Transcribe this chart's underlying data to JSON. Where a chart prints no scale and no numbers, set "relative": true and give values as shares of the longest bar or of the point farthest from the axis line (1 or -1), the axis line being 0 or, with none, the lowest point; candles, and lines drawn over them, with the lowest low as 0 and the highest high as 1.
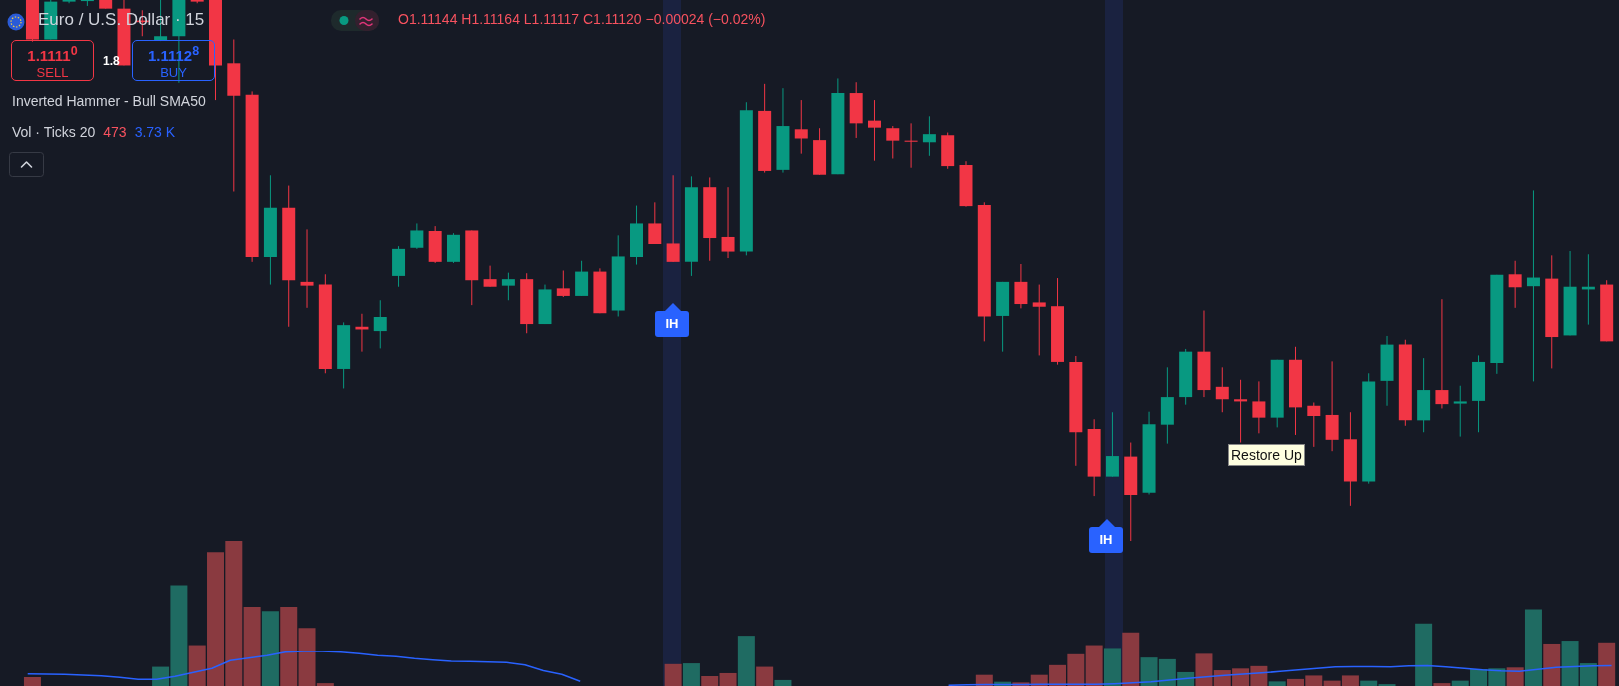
{
  "chart_data": [
    {
      "type": "candlestick",
      "title": "Euro / U.S. Dollar · 15",
      "subtitle": "O1.11144 H1.11164 L1.11117 C1.11120 −0.00024 (−0.02%)",
      "relative": true,
      "categories": [
        null,
        null,
        null,
        null,
        null,
        null,
        null,
        null,
        null,
        null,
        null,
        null,
        null,
        null,
        null,
        null,
        null,
        null,
        null,
        null,
        null,
        null,
        null,
        null,
        null,
        null,
        null,
        null,
        null,
        null,
        null,
        null,
        null,
        null,
        null,
        null,
        null,
        null,
        null,
        null,
        null,
        null,
        null,
        null,
        null,
        null,
        null,
        null,
        null,
        null,
        null,
        null,
        null,
        null,
        null,
        null,
        null,
        null,
        null,
        null,
        null,
        null,
        null,
        null,
        null,
        null,
        null,
        null,
        null,
        null,
        null,
        null,
        null,
        null,
        null,
        null,
        null,
        null,
        null,
        null,
        null,
        null,
        null,
        null,
        null,
        null,
        null
      ],
      "ohlc": [
        [
          1,
          1,
          0.923,
          0.927
        ],
        [
          0.927,
          1,
          0.927,
          0.997
        ],
        [
          0.997,
          1,
          0.994,
          1
        ],
        [
          0.998,
          1,
          0.989,
          1
        ],
        [
          1,
          1,
          0.984,
          0.984
        ],
        [
          0.984,
          1,
          0.879,
          0.879
        ],
        [
          0.962,
          0.981,
          0.933,
          0.959
        ],
        [
          0.925,
          1,
          0.924,
          0.933
        ],
        [
          0.933,
          1,
          0.847,
          1
        ],
        [
          1,
          1,
          0.994,
          0.997
        ],
        [
          1,
          1,
          0.815,
          0.879
        ],
        [
          0.883,
          0.927,
          0.646,
          0.823
        ],
        [
          0.825,
          0.831,
          0.516,
          0.525
        ],
        [
          0.525,
          0.676,
          0.474,
          0.616
        ],
        [
          0.616,
          0.657,
          0.396,
          0.482
        ],
        [
          0.479,
          0.576,
          0.431,
          0.472
        ],
        [
          0.474,
          0.493,
          0.31,
          0.318
        ],
        [
          0.318,
          0.404,
          0.282,
          0.399
        ],
        [
          0.396,
          0.42,
          0.35,
          0.391
        ],
        [
          0.388,
          0.445,
          0.356,
          0.414
        ],
        [
          0.49,
          0.545,
          0.47,
          0.54
        ],
        [
          0.542,
          0.587,
          0.54,
          0.574
        ],
        [
          0.573,
          0.582,
          0.514,
          0.516
        ],
        [
          0.516,
          0.569,
          0.514,
          0.566
        ],
        [
          0.574,
          0.574,
          0.436,
          0.482
        ],
        [
          0.484,
          0.509,
          0.47,
          0.47
        ],
        [
          0.472,
          0.496,
          0.445,
          0.484
        ],
        [
          0.484,
          0.495,
          0.384,
          0.401
        ],
        [
          0.401,
          0.474,
          0.401,
          0.465
        ],
        [
          0.467,
          0.5,
          0.451,
          0.453
        ],
        [
          0.453,
          0.518,
          0.453,
          0.498
        ],
        [
          0.498,
          0.504,
          0.421,
          0.421
        ],
        [
          0.426,
          0.565,
          0.415,
          0.526
        ],
        [
          0.525,
          0.62,
          0.511,
          0.587
        ],
        [
          0.587,
          0.626,
          0.549,
          0.549
        ],
        [
          0.55,
          0.676,
          0.516,
          0.516
        ],
        [
          0.516,
          0.674,
          0.49,
          0.654
        ],
        [
          0.654,
          0.672,
          0.518,
          0.56
        ],
        [
          0.562,
          0.654,
          0.523,
          0.535
        ],
        [
          0.535,
          0.811,
          0.528,
          0.796
        ],
        [
          0.795,
          0.845,
          0.681,
          0.684
        ],
        [
          0.686,
          0.837,
          0.681,
          0.767
        ],
        [
          0.761,
          0.815,
          0.716,
          0.744
        ],
        [
          0.741,
          0.763,
          0.677,
          0.677
        ],
        [
          0.678,
          0.855,
          0.678,
          0.828
        ],
        [
          0.828,
          0.848,
          0.745,
          0.772
        ],
        [
          0.777,
          0.815,
          0.703,
          0.764
        ],
        [
          0.763,
          0.767,
          0.707,
          0.74
        ],
        [
          0.74,
          0.772,
          0.69,
          0.738
        ],
        [
          0.737,
          0.785,
          0.712,
          0.752
        ],
        [
          0.75,
          0.755,
          0.688,
          0.693
        ],
        [
          0.695,
          0.702,
          0.618,
          0.619
        ],
        [
          0.621,
          0.626,
          0.369,
          0.415
        ],
        [
          0.416,
          0.479,
          0.35,
          0.479
        ],
        [
          0.479,
          0.512,
          0.43,
          0.438
        ],
        [
          0.441,
          0.474,
          0.343,
          0.433
        ],
        [
          0.434,
          0.486,
          0.326,
          0.331
        ],
        [
          0.331,
          0.342,
          0.139,
          0.201
        ],
        [
          0.207,
          0.225,
          0.083,
          0.119
        ],
        [
          0.119,
          0.238,
          0.119,
          0.157
        ],
        [
          0.156,
          0.182,
          0,
          0.085
        ],
        [
          0.089,
          0.239,
          0.086,
          0.216
        ],
        [
          0.215,
          0.321,
          0.18,
          0.266
        ],
        [
          0.266,
          0.355,
          0.252,
          0.35
        ],
        [
          0.35,
          0.426,
          0.266,
          0.279
        ],
        [
          0.285,
          0.321,
          0.238,
          0.262
        ],
        [
          0.262,
          0.298,
          0.182,
          0.258
        ],
        [
          0.258,
          0.295,
          0.199,
          0.228
        ],
        [
          0.228,
          0.335,
          0.21,
          0.335
        ],
        [
          0.335,
          0.359,
          0.196,
          0.247
        ],
        [
          0.25,
          0.256,
          0.174,
          0.231
        ],
        [
          0.233,
          0.332,
          0.166,
          0.187
        ],
        [
          0.188,
          0.238,
          0.065,
          0.11
        ],
        [
          0.11,
          0.31,
          0.106,
          0.295
        ],
        [
          0.296,
          0.379,
          0.25,
          0.363
        ],
        [
          0.363,
          0.372,
          0.213,
          0.223
        ],
        [
          0.223,
          0.338,
          0.201,
          0.279
        ],
        [
          0.279,
          0.447,
          0.245,
          0.253
        ],
        [
          0.254,
          0.287,
          0.193,
          0.258
        ],
        [
          0.259,
          0.343,
          0.201,
          0.331
        ],
        [
          0.329,
          0.492,
          0.309,
          0.492
        ],
        [
          0.493,
          0.518,
          0.431,
          0.469
        ],
        [
          0.471,
          0.648,
          0.295,
          0.487
        ],
        [
          0.485,
          0.528,
          0.319,
          0.377
        ],
        [
          0.38,
          0.536,
          0.38,
          0.47
        ],
        [
          0.465,
          0.53,
          0.4,
          0.47
        ],
        [
          0.474,
          0.482,
          0.369,
          0.369
        ]
      ],
      "colors": [
        "#f23645",
        "#089981",
        "#089981",
        "#089981",
        "#f23645",
        "#f23645",
        "#f23645",
        "#089981",
        "#089981",
        "#f23645",
        "#f23645",
        "#f23645",
        "#f23645",
        "#089981",
        "#f23645",
        "#f23645",
        "#f23645",
        "#089981",
        "#f23645",
        "#089981",
        "#089981",
        "#089981",
        "#f23645",
        "#089981",
        "#f23645",
        "#f23645",
        "#089981",
        "#f23645",
        "#089981",
        "#f23645",
        "#089981",
        "#f23645",
        "#089981",
        "#089981",
        "#f23645",
        "#f23645",
        "#089981",
        "#f23645",
        "#f23645",
        "#089981",
        "#f23645",
        "#089981",
        "#f23645",
        "#f23645",
        "#089981",
        "#f23645",
        "#f23645",
        "#f23645",
        "#f23645",
        "#089981",
        "#f23645",
        "#f23645",
        "#f23645",
        "#089981",
        "#f23645",
        "#f23645",
        "#f23645",
        "#f23645",
        "#f23645",
        "#089981",
        "#f23645",
        "#089981",
        "#089981",
        "#089981",
        "#f23645",
        "#f23645",
        "#f23645",
        "#f23645",
        "#089981",
        "#f23645",
        "#f23645",
        "#f23645",
        "#f23645",
        "#089981",
        "#089981",
        "#f23645",
        "#089981",
        "#f23645",
        "#089981",
        "#089981",
        "#089981",
        "#f23645",
        "#089981",
        "#f23645",
        "#089981",
        "#089981",
        "#f23645"
      ],
      "annotations": [
        "1.1111$^{0}$",
        "SELL",
        "1.8",
        "1.1112$^{8}$",
        "BUY",
        "Inverted Hammer - Bull SMA50",
        "Vol · Ticks 20",
        "473",
        "3.73 K",
        "Restore Up",
        "IH",
        "IH"
      ]
    },
    {
      "type": "bar",
      "relative": true,
      "categories": [
        null,
        null,
        null,
        null,
        null,
        null,
        null,
        null,
        null,
        null,
        null,
        null,
        null,
        null,
        null,
        null,
        null,
        null,
        null,
        null,
        null,
        null,
        null,
        null,
        null,
        null,
        null,
        null,
        null,
        null,
        null,
        null,
        null,
        null,
        null,
        null,
        null,
        null,
        null,
        null,
        null,
        null,
        null,
        null,
        null,
        null,
        null,
        null,
        null,
        null,
        null,
        null,
        null,
        null,
        null,
        null,
        null,
        null,
        null,
        null,
        null,
        null,
        null,
        null,
        null,
        null,
        null,
        null,
        null,
        null,
        null,
        null,
        null,
        null,
        null,
        null,
        null,
        null,
        null,
        null,
        null,
        null,
        null,
        null,
        null,
        null,
        null
      ],
      "values": [
        0.062,
        null,
        null,
        null,
        null,
        null,
        null,
        0.134,
        0.693,
        0.279,
        0.923,
        1,
        0.544,
        0.515,
        0.544,
        0.399,
        0.02,
        null,
        null,
        null,
        null,
        null,
        null,
        null,
        null,
        null,
        null,
        null,
        null,
        null,
        null,
        null,
        null,
        null,
        null,
        0.153,
        0.158,
        0.069,
        0.09,
        0.344,
        0.134,
        0.042,
        null,
        null,
        null,
        null,
        null,
        null,
        null,
        null,
        null,
        null,
        0.078,
        0.03,
        0.025,
        0.078,
        0.146,
        0.222,
        0.279,
        0.259,
        0.368,
        0.199,
        0.187,
        0.097,
        0.225,
        0.11,
        0.122,
        0.139,
        0.032,
        0.049,
        0.073,
        0.037,
        0.073,
        0.037,
        0.013,
        null,
        0.43,
        0.02,
        0.037,
        0.117,
        0.122,
        0.129,
        0.527,
        0.29,
        0.31,
        0.158,
        0.298
      ],
      "colors": [
        "#8a3a40",
        "#1f6b62",
        "#1f6b62",
        "#1f6b62",
        "#8a3a40",
        "#8a3a40",
        "#8a3a40",
        "#1f6b62",
        "#1f6b62",
        "#8a3a40",
        "#8a3a40",
        "#8a3a40",
        "#8a3a40",
        "#1f6b62",
        "#8a3a40",
        "#8a3a40",
        "#8a3a40",
        "#1f6b62",
        "#8a3a40",
        "#1f6b62",
        "#1f6b62",
        "#1f6b62",
        "#8a3a40",
        "#1f6b62",
        "#8a3a40",
        "#8a3a40",
        "#1f6b62",
        "#8a3a40",
        "#1f6b62",
        "#8a3a40",
        "#1f6b62",
        "#8a3a40",
        "#1f6b62",
        "#1f6b62",
        "#8a3a40",
        "#8a3a40",
        "#1f6b62",
        "#8a3a40",
        "#8a3a40",
        "#1f6b62",
        "#8a3a40",
        "#1f6b62",
        "#8a3a40",
        "#8a3a40",
        "#1f6b62",
        "#8a3a40",
        "#8a3a40",
        "#8a3a40",
        "#8a3a40",
        "#1f6b62",
        "#8a3a40",
        "#8a3a40",
        "#8a3a40",
        "#1f6b62",
        "#8a3a40",
        "#8a3a40",
        "#8a3a40",
        "#8a3a40",
        "#8a3a40",
        "#1f6b62",
        "#8a3a40",
        "#1f6b62",
        "#1f6b62",
        "#1f6b62",
        "#8a3a40",
        "#8a3a40",
        "#8a3a40",
        "#8a3a40",
        "#1f6b62",
        "#8a3a40",
        "#8a3a40",
        "#8a3a40",
        "#8a3a40",
        "#1f6b62",
        "#1f6b62",
        "#8a3a40",
        "#1f6b62",
        "#8a3a40",
        "#1f6b62",
        "#1f6b62",
        "#1f6b62",
        "#8a3a40",
        "#1f6b62",
        "#8a3a40",
        "#1f6b62",
        "#1f6b62",
        "#8a3a40"
      ]
    },
    {
      "type": "line",
      "relative": true,
      "categories": [
        null,
        null,
        null,
        null,
        null,
        null,
        null,
        null,
        null,
        null,
        null,
        null,
        null,
        null,
        null,
        null,
        null,
        null,
        null,
        null,
        null,
        null,
        null,
        null,
        null,
        null,
        null,
        null,
        null,
        null,
        null,
        null,
        null,
        null,
        null,
        null,
        null,
        null,
        null,
        null,
        null,
        null,
        null,
        null,
        null,
        null,
        null,
        null,
        null,
        null,
        null,
        null,
        null,
        null,
        null,
        null,
        null,
        null,
        null,
        null,
        null,
        null,
        null,
        null,
        null,
        null,
        null,
        null,
        null,
        null,
        null,
        null,
        null,
        null,
        null,
        null,
        null,
        null,
        null,
        null,
        null,
        null,
        null,
        null,
        null,
        null,
        null
      ],
      "series": [
        {
          "color": "#2962ff",
          "values": [
            0.354,
            0.346,
            0.34,
            0.32,
            0.297,
            0.255,
            0.198,
            0.198,
            0.283,
            0.397,
            0.51,
            0.737,
            0.807,
            0.878,
            0.98,
            1,
            1,
            0.977,
            0.935,
            0.878,
            0.85,
            0.793,
            0.751,
            0.717,
            0.708,
            0.694,
            0.68,
            0.609,
            0.445,
            0.34,
            0.142,
            null,
            null,
            null,
            null,
            null,
            null,
            null,
            null,
            null,
            null,
            null,
            null,
            null,
            null,
            null,
            null,
            null,
            null,
            null,
            null,
            null,
            null,
            null,
            null,
            null,
            null,
            null,
            null,
            null,
            null,
            null,
            null,
            null,
            null,
            null,
            null,
            null,
            null,
            null,
            null,
            null,
            null,
            null,
            null,
            null,
            null,
            null,
            null,
            null,
            null,
            null,
            null,
            null,
            null,
            null,
            null
          ]
        },
        {
          "color": "#2962ff",
          "values": [
            null,
            null,
            null,
            null,
            null,
            null,
            null,
            null,
            null,
            null,
            null,
            null,
            null,
            null,
            null,
            null,
            null,
            null,
            null,
            null,
            null,
            null,
            null,
            null,
            null,
            null,
            null,
            null,
            null,
            null,
            null,
            null,
            null,
            null,
            null,
            null,
            null,
            null,
            null,
            null,
            null,
            null,
            null,
            null,
            null,
            null,
            null,
            null,
            null,
            null,
            0.028,
            0.042,
            0.048,
            0.051,
            0.054,
            0.057,
            0.057,
            0.057,
            0.057,
            0.074,
            0.099,
            0.127,
            0.181,
            0.227,
            0.269,
            0.312,
            0.346,
            0.382,
            0.425,
            0.467,
            0.51,
            0.552,
            0.561,
            0.561,
            0.552,
            0.581,
            0.589,
            0.552,
            0.51,
            0.467,
            0.439,
            0.425,
            0.482,
            0.538,
            0.561,
            0.581,
            0.589
          ]
        }
      ]
    }
  ]
}
